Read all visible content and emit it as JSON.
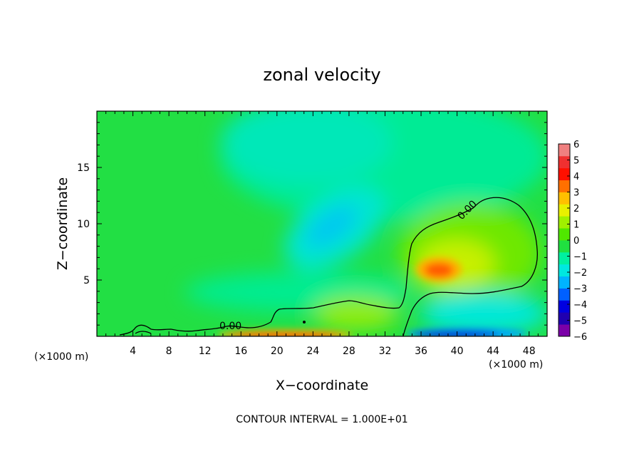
{
  "chart_data": {
    "type": "heatmap",
    "title": "zonal velocity",
    "xlabel": "X−coordinate",
    "ylabel": "Z−coordinate",
    "x_unit_left": "(×1000 m)",
    "x_unit_right": "(×1000 m)",
    "xlim": [
      0,
      50
    ],
    "ylim": [
      0,
      20
    ],
    "x_ticks": [
      4,
      8,
      12,
      16,
      20,
      24,
      28,
      32,
      36,
      40,
      44,
      48
    ],
    "y_ticks": [
      5,
      10,
      15
    ],
    "contour_label": "0.00",
    "footer": "CONTOUR INTERVAL = 1.000E+01",
    "colorbar": {
      "ticks": [
        "6",
        "5",
        "4",
        "3",
        "2",
        "1",
        "0",
        "−1",
        "−2",
        "−3",
        "−4",
        "−5",
        "−6"
      ],
      "range": [
        -6,
        6
      ],
      "colors": [
        "#7b00a8",
        "#2000b0",
        "#0000e0",
        "#0060ff",
        "#00b4ff",
        "#00e8e0",
        "#00f0a0",
        "#20e040",
        "#50e800",
        "#a0f000",
        "#e8f000",
        "#ffc000",
        "#ff7000",
        "#ff1000",
        "#f03030",
        "#f08080"
      ]
    },
    "features": [
      {
        "name": "positive maximum",
        "x": 38,
        "z": 6,
        "value": 5
      },
      {
        "name": "negative jet aloft",
        "x": 26,
        "z": 10,
        "value": -2
      },
      {
        "name": "surface positive band",
        "x_range": [
          14,
          27
        ],
        "z": 0,
        "value": 4
      },
      {
        "name": "surface negative band",
        "x_range": [
          34,
          46
        ],
        "z": 0,
        "value": -5
      }
    ]
  }
}
